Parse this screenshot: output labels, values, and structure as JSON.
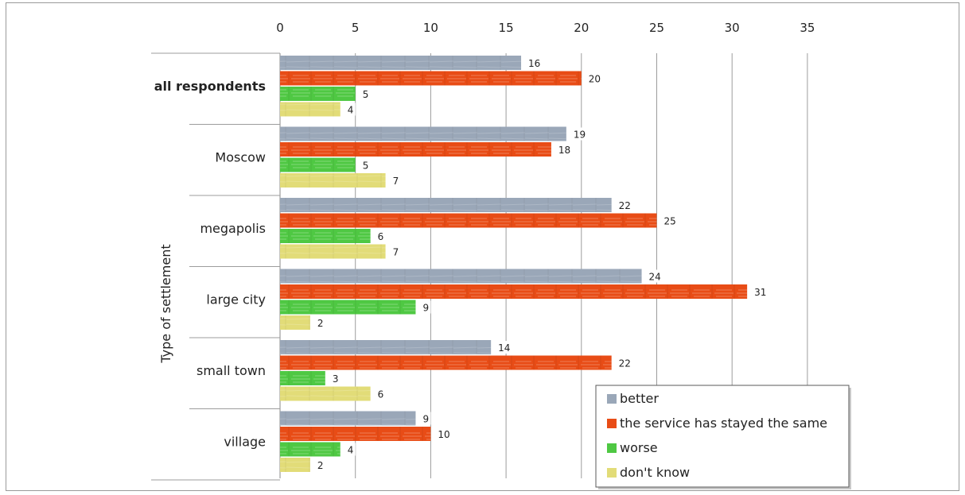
{
  "chart_data": {
    "type": "bar",
    "orientation": "horizontal",
    "ylabel": "Type of settlement",
    "xlim": [
      0,
      35
    ],
    "xticks": [
      0,
      5,
      10,
      15,
      20,
      25,
      30,
      35
    ],
    "grid": true,
    "legend_position": "bottom-right",
    "categories": [
      "all respondents",
      "Moscow",
      "megapolis",
      "large city",
      "small town",
      "village"
    ],
    "series": [
      {
        "name": "better",
        "color": "#9aa7b8",
        "values": [
          16,
          19,
          22,
          24,
          14,
          9
        ]
      },
      {
        "name": "the service has stayed the same",
        "color": "#e84c16",
        "values": [
          20,
          18,
          25,
          31,
          22,
          10
        ]
      },
      {
        "name": "worse",
        "color": "#4fc843",
        "values": [
          5,
          5,
          6,
          9,
          3,
          4
        ]
      },
      {
        "name": "don't know",
        "color": "#e2dc78",
        "values": [
          4,
          7,
          7,
          2,
          6,
          2
        ]
      }
    ]
  }
}
